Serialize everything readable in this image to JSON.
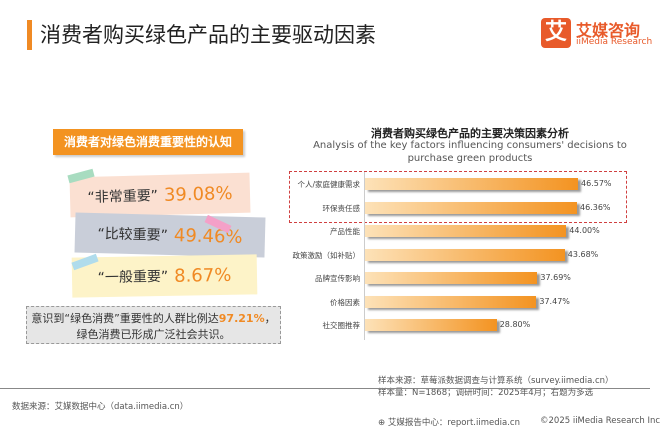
{
  "header": {
    "title": "消费者购买绿色产品的主要驱动因素",
    "logo_icon": "艾",
    "logo_cn": "艾媒咨询",
    "logo_en": "iiMedia Research"
  },
  "left": {
    "title": "消费者对绿色消费重要性的认知",
    "cards": [
      {
        "label": "“非常重要”",
        "value": "39.08%",
        "color": "#fbe0d2",
        "tape": "#a8dcc0"
      },
      {
        "label": "“比较重要”",
        "value": "49.46%",
        "color": "#c9ced9",
        "tape": "#f4a0c8"
      },
      {
        "label": "“一般重要”",
        "value": "8.67%",
        "color": "#fdf3c8",
        "tape": "#b0dcec"
      }
    ],
    "note_pre": "意识到“绿色消费”重要性的人群比例达",
    "note_hl": "97.21%",
    "note_post": "，",
    "note_line2": "绿色消费已形成广泛社会共识。"
  },
  "chart_data": {
    "type": "bar",
    "orientation": "horizontal",
    "title": "消费者购买绿色产品的主要决策因素分析",
    "subtitle": "Analysis of the key factors influencing consumers' decisions to purchase green products",
    "categories": [
      "个人/家庭健康需求",
      "环保责任感",
      "产品性能",
      "政策激励（如补贴）",
      "品牌宣传影响",
      "价格因素",
      "社交圈推荐"
    ],
    "values": [
      46.57,
      46.36,
      44.0,
      43.68,
      37.69,
      37.47,
      28.8
    ],
    "labels": [
      "46.57%",
      "46.36%",
      "44.00%",
      "43.68%",
      "37.69%",
      "37.47%",
      "28.80%"
    ],
    "highlighted": [
      "个人/家庭健康需求",
      "环保责任感"
    ],
    "bar_color": "#f39321"
  },
  "footer": {
    "source": "数据来源：艾媒数据中心（data.iimedia.cn）",
    "sample_source": "样本来源：草莓派数据调查与计算系统（survey.iimedia.cn）",
    "sample_size": "样本量：N=1868；调研时间：2025年4月；右题为多选",
    "report": "艾媒报告中心：report.iimedia.cn",
    "copyright": "©2025  iiMedia Research  Inc"
  }
}
